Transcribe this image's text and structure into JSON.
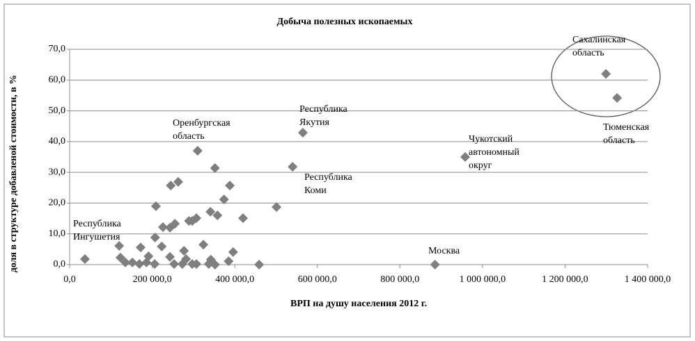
{
  "chart_data": {
    "type": "scatter",
    "title": "Добыча  полезных  ископаемых",
    "x_label": "ВРП на душу населения 2012 г.",
    "y_label": "доля в структуре добавленой стоимости, в %",
    "color": "#7f7f7f",
    "grid": true,
    "xlim": [
      0,
      1400000
    ],
    "xticks": [
      {
        "value": 0,
        "label": "0,0"
      },
      {
        "value": 200000,
        "label": "200 000,0"
      },
      {
        "value": 400000,
        "label": "400 000,0"
      },
      {
        "value": 600000,
        "label": "600 000,0"
      },
      {
        "value": 800000,
        "label": "800 000,0"
      },
      {
        "value": 1000000,
        "label": "1 000 000,0"
      },
      {
        "value": 1200000,
        "label": "1 200 000,0"
      },
      {
        "value": 1400000,
        "label": "1 400 000,0"
      }
    ],
    "ylim": [
      0,
      70
    ],
    "yticks": [
      {
        "value": 0,
        "label": "0,0"
      },
      {
        "value": 10,
        "label": "10,0"
      },
      {
        "value": 20,
        "label": "20,0"
      },
      {
        "value": 30,
        "label": "30,0"
      },
      {
        "value": 40,
        "label": "40,0"
      },
      {
        "value": 50,
        "label": "50,0"
      },
      {
        "value": 60,
        "label": "60,0"
      },
      {
        "value": 70,
        "label": "70,0"
      }
    ],
    "x": [
      1299000,
      1326000,
      565000,
      540000,
      958000,
      885000,
      310000,
      352000,
      501000,
      388000,
      374000,
      420000,
      341000,
      358000,
      263000,
      245000,
      209000,
      307000,
      289000,
      297000,
      255000,
      243000,
      226000,
      207000,
      324000,
      223000,
      172000,
      120000,
      396000,
      277000,
      37000,
      123000,
      191000,
      243000,
      342000,
      385000,
      282000,
      135000,
      152000,
      169000,
      186000,
      206000,
      253000,
      273000,
      297000,
      307000,
      337000,
      459000,
      352000
    ],
    "y": [
      62,
      54.2,
      42.9,
      31.8,
      35,
      0,
      37,
      31.4,
      18.7,
      25.7,
      21.2,
      15.1,
      17.2,
      16,
      26.9,
      25.7,
      19,
      15.1,
      14.2,
      14.2,
      13.3,
      12,
      12.2,
      8.8,
      6.5,
      5.9,
      5.6,
      6.1,
      4.1,
      4.5,
      1.8,
      2.3,
      2.7,
      2.5,
      1.6,
      1.1,
      1.8,
      0.7,
      0.7,
      0.2,
      0.7,
      0.2,
      0.2,
      0.2,
      0.2,
      0.2,
      0.2,
      0,
      0
    ],
    "annotations": [
      {
        "text": [
          "Сахалинская",
          "область"
        ]
      },
      {
        "text": [
          "Тюменская",
          "область"
        ]
      },
      {
        "text": [
          "Республика",
          "Якутия"
        ]
      },
      {
        "text": [
          "Республика",
          "Коми"
        ]
      },
      {
        "text": [
          "Чукотский",
          "автономный",
          "округ"
        ]
      },
      {
        "text": [
          "Оренбургская",
          "область"
        ]
      },
      {
        "text": [
          "Республика",
          "Ингушетия"
        ]
      },
      {
        "text": [
          "Москва"
        ]
      }
    ]
  }
}
